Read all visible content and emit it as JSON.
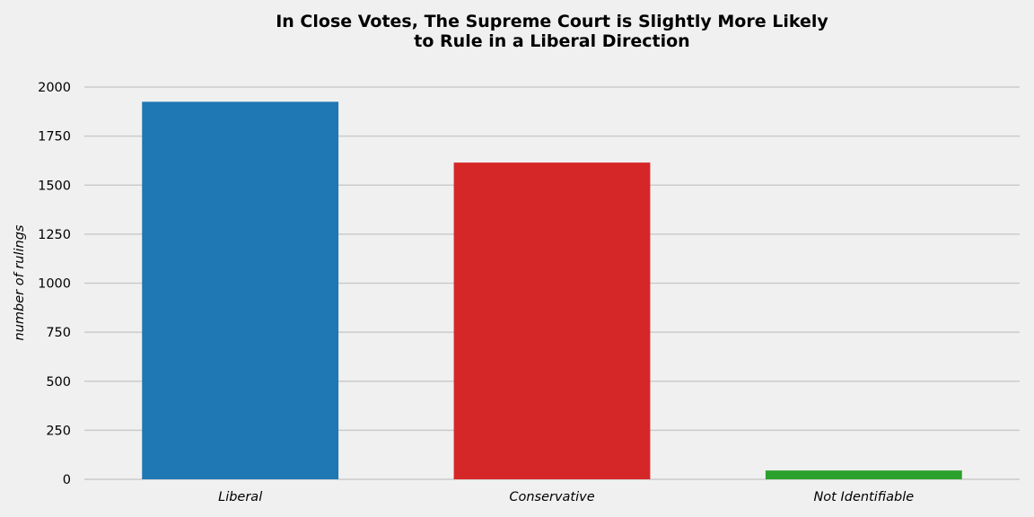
{
  "chart_data": {
    "type": "bar",
    "title_lines": [
      "In Close Votes, The Supreme Court is Slightly More Likely",
      "to Rule in a Liberal Direction"
    ],
    "xlabel": "",
    "ylabel": "number of rulings",
    "categories": [
      "Liberal",
      "Conservative",
      "Not Identifiable"
    ],
    "values": [
      1925,
      1615,
      45
    ],
    "colors": [
      "#1f77b4",
      "#d62728",
      "#2ca02c"
    ],
    "ylim": [
      0,
      2000
    ],
    "yticks": [
      0,
      250,
      500,
      750,
      1000,
      1250,
      1500,
      1750,
      2000
    ],
    "grid": true,
    "legend": "none"
  }
}
